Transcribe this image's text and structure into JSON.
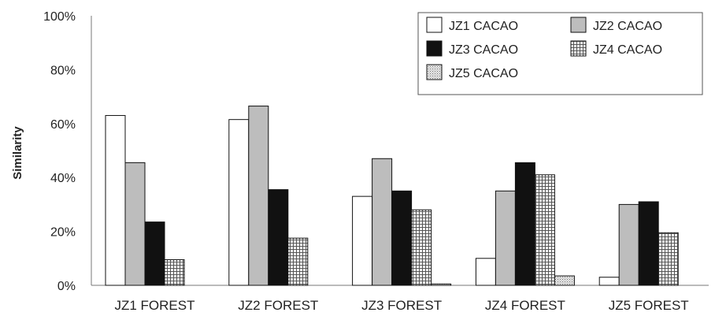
{
  "chart_data": {
    "type": "bar",
    "title": "",
    "xlabel": "",
    "ylabel": "Similarity",
    "ylim": [
      0,
      100
    ],
    "yticks": [
      "0%",
      "20%",
      "40%",
      "60%",
      "80%",
      "100%"
    ],
    "grid": false,
    "legend_position": "top-right",
    "categories": [
      "JZ1 FOREST",
      "JZ2 FOREST",
      "JZ3 FOREST",
      "JZ4 FOREST",
      "JZ5 FOREST"
    ],
    "series": [
      {
        "name": "JZ1 CACAO",
        "color": "#ffffff",
        "fill": "solid-white",
        "values": [
          63,
          61.5,
          33,
          10,
          3
        ]
      },
      {
        "name": "JZ2 CACAO",
        "color": "#bdbdbd",
        "fill": "solid-gray",
        "values": [
          45.5,
          66.5,
          47,
          35,
          30
        ]
      },
      {
        "name": "JZ3 CACAO",
        "color": "#111111",
        "fill": "solid-black",
        "values": [
          23.5,
          35.5,
          35,
          45.5,
          31
        ]
      },
      {
        "name": "JZ4 CACAO",
        "color": "#bbbbbb",
        "fill": "grid-hatch",
        "values": [
          9.5,
          17.5,
          28,
          41,
          19.5
        ]
      },
      {
        "name": "JZ5 CACAO",
        "color": "#cccccc",
        "fill": "fine-dots",
        "values": [
          null,
          null,
          0.5,
          3.5,
          null
        ]
      }
    ]
  }
}
